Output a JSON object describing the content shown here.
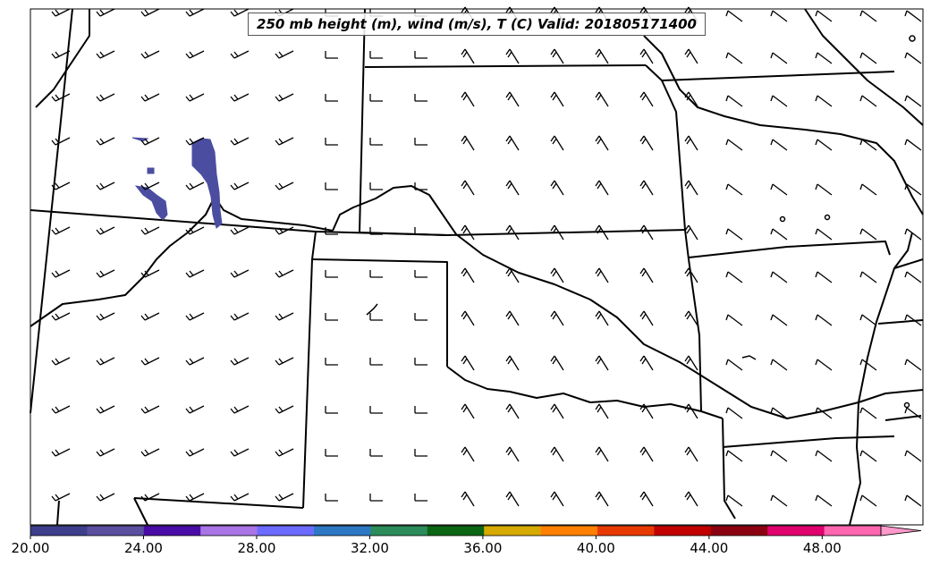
{
  "title": "250 mb height (m), wind (m/s), T (C) Valid: 201805171400",
  "colorbar": {
    "ticks": [
      "20.00",
      "24.00",
      "28.00",
      "32.00",
      "36.00",
      "40.00",
      "44.00",
      "48.00"
    ],
    "min": 20,
    "max": 51.5,
    "extend": "max",
    "colors": [
      "#3d3f8c",
      "#5b4fa0",
      "#4a0ca6",
      "#a874e6",
      "#6b6bff",
      "#2e77c4",
      "#2c8c5a",
      "#0b6614",
      "#d6aa00",
      "#ff8000",
      "#e83a00",
      "#c20000",
      "#8b0010",
      "#e0006e",
      "#ff66b0",
      "#ff99cc"
    ]
  },
  "temperature_fill_color": "#4b4ea0",
  "wind_barbs_note_color": "#000000"
}
